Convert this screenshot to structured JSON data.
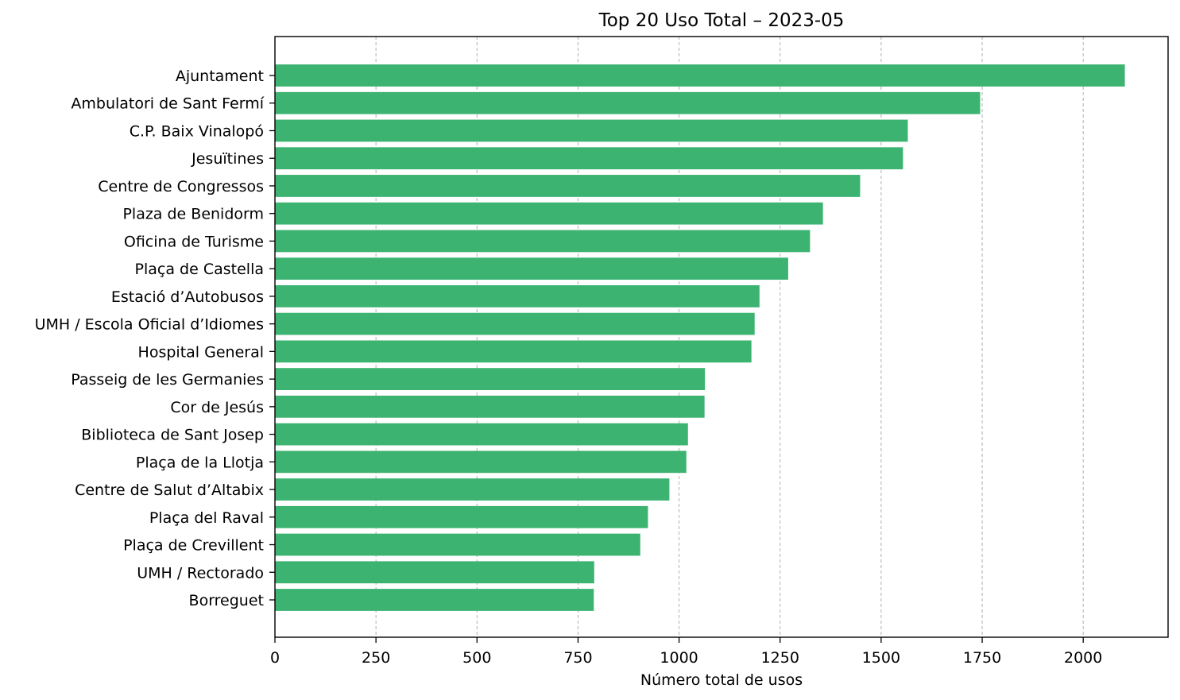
{
  "chart_data": {
    "type": "bar",
    "orientation": "horizontal",
    "title": "Top 20 Uso Total – 2023-05",
    "xlabel": "Número total de usos",
    "ylabel": "",
    "xlim": [
      0,
      2210
    ],
    "xticks": [
      0,
      250,
      500,
      750,
      1000,
      1250,
      1500,
      1750,
      2000
    ],
    "grid": "x-axis dashed",
    "bar_color": "#3cb371",
    "categories": [
      "Ajuntament",
      "Ambulatori de Sant Fermí",
      "C.P. Baix Vinalopó",
      "Jesuïtines",
      "Centre de Congressos",
      "Plaza de Benidorm",
      "Oficina de Turisme",
      "Plaça de Castella",
      "Estació d’Autobusos",
      "UMH / Escola Oficial d’Idiomes",
      "Hospital General",
      "Passeig de les Germanies",
      "Cor de Jesús",
      "Biblioteca de Sant Josep",
      "Plaça de la Llotja",
      "Centre de Salut d’Altabix",
      "Plaça del Raval",
      "Plaça de Crevillent",
      "UMH / Rectorado",
      "Borreguet"
    ],
    "values": [
      2103,
      1745,
      1566,
      1554,
      1448,
      1356,
      1324,
      1270,
      1199,
      1187,
      1179,
      1064,
      1063,
      1022,
      1018,
      976,
      923,
      904,
      790,
      789
    ]
  }
}
